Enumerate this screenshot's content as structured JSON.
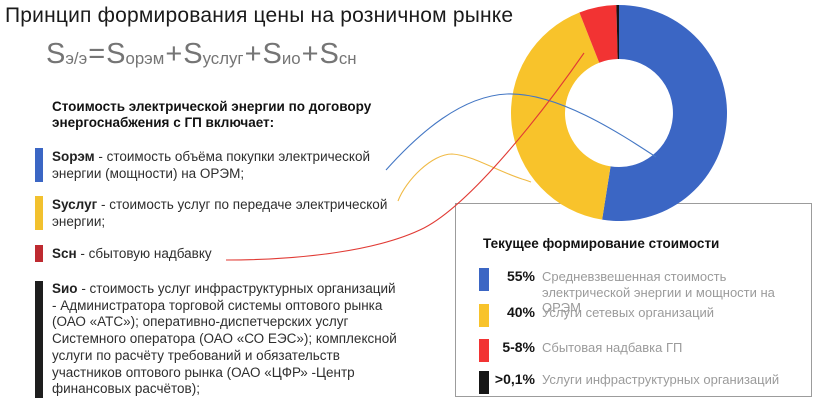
{
  "page": {
    "title": "Принцип формирования цены на розничном рынке",
    "background": "#ffffff"
  },
  "formula": {
    "color": "#757575",
    "text": "Sэ/э=Sорэм+Sуслуг+Sио+Sсн",
    "parts": [
      {
        "base": "S",
        "sub": "э/э"
      },
      {
        "op": "="
      },
      {
        "base": "S",
        "sub": "орэм"
      },
      {
        "op": "+"
      },
      {
        "base": "S",
        "sub": "услуг"
      },
      {
        "op": "+"
      },
      {
        "base": "S",
        "sub": "ио"
      },
      {
        "op": "+"
      },
      {
        "base": "S",
        "sub": "сн"
      }
    ]
  },
  "intro": {
    "text": "Стоимость электрической энергии по договору энергоснабжения с ГП включает:"
  },
  "items": [
    {
      "term": "Sорэм",
      "text": " - стоимость объёма покупки электрической энергии (мощности) на ОРЭМ;",
      "bar_color": "#3b66c4"
    },
    {
      "term": "Sуслуг",
      "text": " - стоимость услуг по передаче электрической энергии;",
      "bar_color": "#f2c12e"
    },
    {
      "term": "Sсн",
      "text": " - сбытовую надбавку",
      "bar_color": "#be2a30"
    },
    {
      "term": "Sио",
      "text": " - стоимость услуг инфраструктурных организаций - Администратора торговой системы оптового рынка (ОАО «АТС»); оперативно-диспетчерских услуг Системного оператора (ОАО «СО ЕЭС»); комплексной услуги по расчёту требований и обязательств участников оптового рынка (ОАО «ЦФР» -Центр финансовых расчётов);",
      "bar_color": "#1e1e1e"
    }
  ],
  "chart_data": {
    "type": "pie",
    "subtype": "donut",
    "legend_title": "Текущее формирование стоимости",
    "direction": "clockwise",
    "start_angle": "12 o'clock",
    "inner_radius_ratio": 0.5,
    "legend_position": "bottom-right box",
    "segments": [
      {
        "label": "Средневзвешенная стоимость\nэлектрической энергии и мощности на ОРЭМ",
        "value_label": "55%",
        "percent": 55,
        "draw_deg": 189,
        "color": "#3b66c4"
      },
      {
        "label": "Услуги сетевых организаций",
        "value_label": "40%",
        "percent": 40,
        "draw_deg": 149.5,
        "color": "#f8c32b"
      },
      {
        "label": "Сбытовая надбавка ГП",
        "value_label": "5-8%",
        "percent": 6.5,
        "draw_deg": 20.1,
        "color": "#f23333"
      },
      {
        "label": "Услуги инфраструктурных организаций",
        "value_label": ">0,1%",
        "percent": 0.1,
        "draw_deg": 1.4,
        "color": "#161616"
      }
    ]
  },
  "leaders": {
    "blue_color": "#4477c4",
    "yellow_color": "#f0ba45",
    "red_color": "#e13b35"
  }
}
